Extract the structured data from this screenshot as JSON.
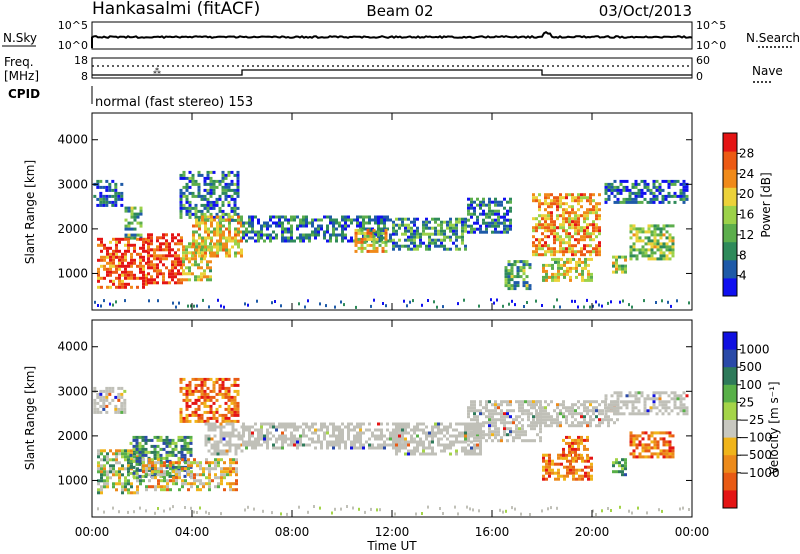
{
  "header": {
    "station": "Hankasalmi (fitACF)",
    "beam": "Beam 02",
    "date": "03/Oct/2013"
  },
  "noise_panel": {
    "left_label": "N.Sky",
    "right_label": "N.Search",
    "left_ticks": [
      "10^5",
      "10^0"
    ],
    "right_ticks": [
      "10^5",
      "10^0"
    ]
  },
  "freq_panel": {
    "left_label_line1": "Freq.",
    "left_label_line2": "[MHz]",
    "left_ticks": [
      "18",
      "8"
    ],
    "right_label": "Nave",
    "right_ticks": [
      "60",
      "0"
    ]
  },
  "cpid": {
    "label": "CPID",
    "text": "normal (fast stereo) 153"
  },
  "colors": {
    "power_scale": [
      "#1010f0",
      "#1e5aa8",
      "#2e8a5a",
      "#5cae4c",
      "#9cd24a",
      "#ecd23a",
      "#f08a1a",
      "#ec5a14",
      "#e41414"
    ],
    "velocity_scale": [
      "#1010e0",
      "#2a4aa8",
      "#2e7a5a",
      "#58b048",
      "#a4d448",
      "#c8c8c0",
      "#f0b41a",
      "#ec8a1a",
      "#e85a14",
      "#e41414"
    ],
    "ground_scatter": "#c0c0b8"
  },
  "chart_data": [
    {
      "type": "heatmap",
      "title": "Power",
      "xlabel": "",
      "ylabel": "Slant Range [km]",
      "x_ticks": [
        "00:00",
        "04:00",
        "08:00",
        "12:00",
        "16:00",
        "20:00",
        "00:00"
      ],
      "xlim_hours": [
        0,
        24
      ],
      "y_ticks": [
        "1000",
        "2000",
        "3000",
        "4000"
      ],
      "ylim_km": [
        180,
        4600
      ],
      "colorbar": {
        "label": "Power [dB]",
        "range": [
          0,
          32
        ],
        "ticks": [
          "4",
          "8",
          "12",
          "16",
          "20",
          "24",
          "28"
        ]
      },
      "echo_regions": [
        {
          "t0": 0.05,
          "t1": 1.2,
          "r0": 2500,
          "r1": 3100,
          "level": 0.15
        },
        {
          "t0": 1.3,
          "t1": 2.0,
          "r0": 1800,
          "r1": 2500,
          "level": 0.35
        },
        {
          "t0": 0.2,
          "t1": 2.2,
          "r0": 700,
          "r1": 1800,
          "level": 0.85
        },
        {
          "t0": 2.2,
          "t1": 3.6,
          "r0": 800,
          "r1": 1900,
          "level": 0.9
        },
        {
          "t0": 3.6,
          "t1": 4.8,
          "r0": 850,
          "r1": 1700,
          "level": 0.55
        },
        {
          "t0": 3.5,
          "t1": 5.9,
          "r0": 2200,
          "r1": 3300,
          "level": 0.25
        },
        {
          "t0": 4.0,
          "t1": 6.0,
          "r0": 1400,
          "r1": 2300,
          "level": 0.6
        },
        {
          "t0": 6.0,
          "t1": 12.0,
          "r0": 1700,
          "r1": 2300,
          "level": 0.2
        },
        {
          "t0": 10.5,
          "t1": 11.8,
          "r0": 1500,
          "r1": 2000,
          "level": 0.6
        },
        {
          "t0": 12.0,
          "t1": 15.0,
          "r0": 1550,
          "r1": 2250,
          "level": 0.3
        },
        {
          "t0": 15.0,
          "t1": 16.8,
          "r0": 1900,
          "r1": 2700,
          "level": 0.2
        },
        {
          "t0": 16.5,
          "t1": 17.5,
          "r0": 650,
          "r1": 1300,
          "level": 0.35
        },
        {
          "t0": 17.6,
          "t1": 20.3,
          "r0": 1400,
          "r1": 2800,
          "level": 0.7
        },
        {
          "t0": 18.0,
          "t1": 20.0,
          "r0": 850,
          "r1": 1350,
          "level": 0.55
        },
        {
          "t0": 20.5,
          "t1": 23.8,
          "r0": 2600,
          "r1": 3100,
          "level": 0.2
        },
        {
          "t0": 21.5,
          "t1": 23.2,
          "r0": 1350,
          "r1": 2100,
          "level": 0.45
        },
        {
          "t0": 20.8,
          "t1": 21.3,
          "r0": 1000,
          "r1": 1400,
          "level": 0.5
        }
      ]
    },
    {
      "type": "heatmap",
      "title": "Velocity",
      "xlabel": "Time UT",
      "ylabel": "Slant Range [km]",
      "x_ticks": [
        "00:00",
        "04:00",
        "08:00",
        "12:00",
        "16:00",
        "20:00",
        "00:00"
      ],
      "xlim_hours": [
        0,
        24
      ],
      "y_ticks": [
        "1000",
        "2000",
        "3000",
        "4000"
      ],
      "ylim_km": [
        180,
        4600
      ],
      "colorbar": {
        "label": "Velocity [m s⁻¹]",
        "ticks": [
          "1000",
          "500",
          "100",
          "25",
          "−25",
          "−100",
          "−500",
          "−1000"
        ]
      },
      "echo_regions": [
        {
          "t0": 0.05,
          "t1": 1.3,
          "r0": 2500,
          "r1": 3100,
          "cls": "ground"
        },
        {
          "t0": 0.2,
          "t1": 2.0,
          "r0": 700,
          "r1": 1700,
          "cls": "mixed_pos"
        },
        {
          "t0": 1.5,
          "t1": 4.0,
          "r0": 1100,
          "r1": 2000,
          "cls": "positive"
        },
        {
          "t0": 2.0,
          "t1": 5.8,
          "r0": 800,
          "r1": 1500,
          "cls": "mixed_neg"
        },
        {
          "t0": 3.5,
          "t1": 5.9,
          "r0": 2300,
          "r1": 3300,
          "cls": "negative"
        },
        {
          "t0": 4.5,
          "t1": 6.0,
          "r0": 1600,
          "r1": 2300,
          "cls": "ground"
        },
        {
          "t0": 6.0,
          "t1": 12.5,
          "r0": 1750,
          "r1": 2300,
          "cls": "ground"
        },
        {
          "t0": 12.0,
          "t1": 15.5,
          "r0": 1600,
          "r1": 2300,
          "cls": "ground"
        },
        {
          "t0": 15.0,
          "t1": 18.0,
          "r0": 1900,
          "r1": 2800,
          "cls": "ground"
        },
        {
          "t0": 17.6,
          "t1": 21.0,
          "r0": 2200,
          "r1": 2800,
          "cls": "ground"
        },
        {
          "t0": 18.0,
          "t1": 20.0,
          "r0": 1000,
          "r1": 1600,
          "cls": "negative"
        },
        {
          "t0": 18.8,
          "t1": 19.8,
          "r0": 1500,
          "r1": 2000,
          "cls": "negative"
        },
        {
          "t0": 20.5,
          "t1": 23.8,
          "r0": 2500,
          "r1": 3000,
          "cls": "ground"
        },
        {
          "t0": 21.5,
          "t1": 23.2,
          "r0": 1500,
          "r1": 2100,
          "cls": "negative"
        },
        {
          "t0": 20.8,
          "t1": 21.3,
          "r0": 1100,
          "r1": 1500,
          "cls": "positive"
        }
      ]
    }
  ]
}
